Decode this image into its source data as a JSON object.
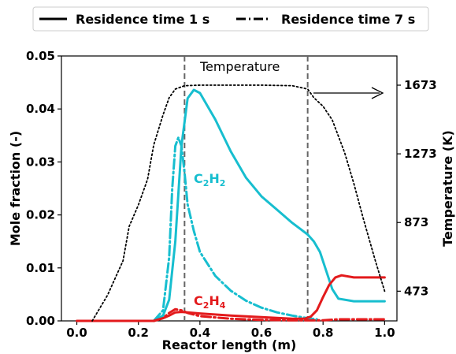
{
  "chart_data": {
    "type": "line",
    "xlabel": "Reactor length (m)",
    "ylabel": "Mole fraction (-)",
    "y2label": "Temperature (K)",
    "xlim": [
      -0.05,
      1.04
    ],
    "ylim": [
      0,
      0.05
    ],
    "y2lim": [
      300,
      1843
    ],
    "xticks": [
      "0.0",
      "0.2",
      "0.4",
      "0.6",
      "0.8",
      "1.0"
    ],
    "yticks": [
      "0.00",
      "0.01",
      "0.02",
      "0.03",
      "0.04",
      "0.05"
    ],
    "y2ticks": [
      "473",
      "873",
      "1273",
      "1673"
    ],
    "legend": {
      "placement": "top",
      "entries": [
        {
          "label": "Residence time 1 s",
          "style": "solid"
        },
        {
          "label": "Residence time 7 s",
          "style": "dashdot"
        }
      ]
    },
    "vlines": [
      0.35,
      0.75
    ],
    "annotations": {
      "temperature": "Temperature",
      "c2h2_main": "C",
      "c2h2_sub1": "2",
      "c2h2_h": "H",
      "c2h2_sub2": "2",
      "c2h4_main": "C",
      "c2h4_sub1": "2",
      "c2h4_h": "H",
      "c2h4_sub2": "4"
    },
    "series": [
      {
        "species": "C2H2",
        "residence": "1 s",
        "color": "#17becf",
        "style": "solid",
        "axis": "left",
        "x": [
          0.25,
          0.28,
          0.3,
          0.32,
          0.34,
          0.36,
          0.38,
          0.4,
          0.45,
          0.5,
          0.55,
          0.6,
          0.65,
          0.7,
          0.75,
          0.77,
          0.79,
          0.81,
          0.83,
          0.85,
          0.9,
          0.95,
          1.0
        ],
        "y": [
          0.0,
          0.001,
          0.004,
          0.015,
          0.033,
          0.042,
          0.0436,
          0.043,
          0.038,
          0.032,
          0.027,
          0.0235,
          0.021,
          0.0185,
          0.0163,
          0.015,
          0.013,
          0.0095,
          0.006,
          0.0042,
          0.0037,
          0.0037,
          0.0037
        ]
      },
      {
        "species": "C2H2",
        "residence": "7 s",
        "color": "#17becf",
        "style": "dashdot",
        "axis": "left",
        "x": [
          0.25,
          0.28,
          0.3,
          0.31,
          0.32,
          0.33,
          0.34,
          0.35,
          0.36,
          0.38,
          0.4,
          0.45,
          0.5,
          0.55,
          0.6,
          0.65,
          0.7,
          0.75,
          0.78
        ],
        "y": [
          0.0,
          0.002,
          0.012,
          0.025,
          0.033,
          0.0346,
          0.033,
          0.028,
          0.022,
          0.017,
          0.013,
          0.0085,
          0.0057,
          0.0038,
          0.0025,
          0.0016,
          0.001,
          0.0005,
          0.0003
        ]
      },
      {
        "species": "C2H4",
        "residence": "1 s",
        "color": "#e31a1c",
        "style": "solid",
        "axis": "left",
        "x": [
          0.0,
          0.25,
          0.28,
          0.3,
          0.32,
          0.34,
          0.36,
          0.4,
          0.5,
          0.6,
          0.7,
          0.74,
          0.76,
          0.78,
          0.8,
          0.82,
          0.84,
          0.86,
          0.9,
          0.95,
          1.0
        ],
        "y": [
          0.0,
          0.0,
          0.0005,
          0.001,
          0.0016,
          0.0017,
          0.0016,
          0.0014,
          0.001,
          0.0007,
          0.0004,
          0.0004,
          0.0008,
          0.002,
          0.0045,
          0.0068,
          0.0082,
          0.0086,
          0.0082,
          0.0082,
          0.0082
        ]
      },
      {
        "species": "C2H4",
        "residence": "7 s",
        "color": "#e31a1c",
        "style": "dashdot",
        "axis": "left",
        "x": [
          0.25,
          0.28,
          0.3,
          0.32,
          0.34,
          0.36,
          0.4,
          0.5,
          0.6,
          0.7,
          0.8,
          0.85,
          0.9,
          0.95,
          1.0
        ],
        "y": [
          0.0,
          0.0005,
          0.0015,
          0.0022,
          0.002,
          0.0015,
          0.0009,
          0.0004,
          0.0002,
          0.0001,
          0.0001,
          0.0003,
          0.0003,
          0.0003,
          0.0003
        ]
      },
      {
        "species": "Temperature",
        "color": "#000000",
        "style": "dotted",
        "axis": "right",
        "x": [
          0.05,
          0.1,
          0.15,
          0.17,
          0.2,
          0.23,
          0.25,
          0.28,
          0.3,
          0.32,
          0.35,
          0.4,
          0.5,
          0.6,
          0.7,
          0.75,
          0.77,
          0.8,
          0.83,
          0.87,
          0.9,
          0.93,
          0.97,
          1.0
        ],
        "y": [
          300,
          450,
          650,
          850,
          975,
          1125,
          1325,
          1500,
          1600,
          1650,
          1670,
          1673,
          1673,
          1673,
          1670,
          1650,
          1600,
          1550,
          1470,
          1280,
          1100,
          900,
          650,
          473
        ]
      }
    ]
  }
}
